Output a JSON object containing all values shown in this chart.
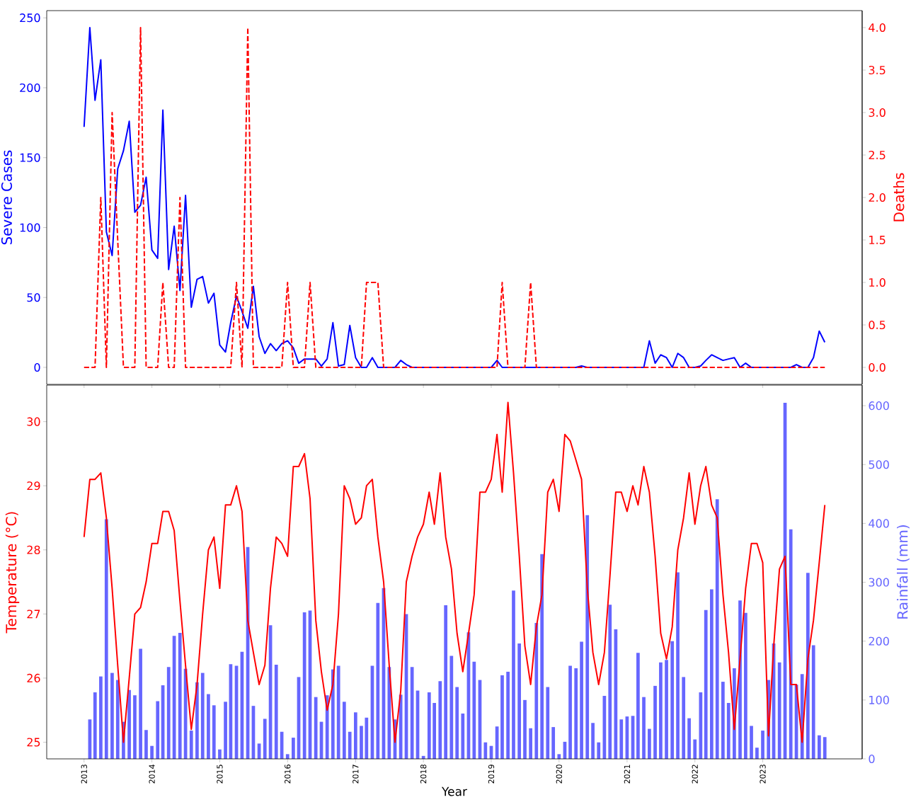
{
  "chart_data": [
    {
      "type": "line",
      "ylabel": "Severe Cases",
      "y2label": "Deaths",
      "x": [
        "2013-01",
        "2013-02",
        "2013-03",
        "2013-04",
        "2013-05",
        "2013-06",
        "2013-07",
        "2013-08",
        "2013-09",
        "2013-10",
        "2013-11",
        "2013-12",
        "2014-01",
        "2014-02",
        "2014-03",
        "2014-04",
        "2014-05",
        "2014-06",
        "2014-07",
        "2014-08",
        "2014-09",
        "2014-10",
        "2014-11",
        "2014-12",
        "2015-01",
        "2015-02",
        "2015-03",
        "2015-04",
        "2015-05",
        "2015-06",
        "2015-07",
        "2015-08",
        "2015-09",
        "2015-10",
        "2015-11",
        "2015-12",
        "2016-01",
        "2016-02",
        "2016-03",
        "2016-04",
        "2016-05",
        "2016-06",
        "2016-07",
        "2016-08",
        "2016-09",
        "2016-10",
        "2016-11",
        "2016-12",
        "2017-01",
        "2017-02",
        "2017-03",
        "2017-04",
        "2017-05",
        "2017-06",
        "2017-07",
        "2017-08",
        "2017-09",
        "2017-10",
        "2017-11",
        "2017-12",
        "2018-01",
        "2018-02",
        "2018-03",
        "2018-04",
        "2018-05",
        "2018-06",
        "2018-07",
        "2018-08",
        "2018-09",
        "2018-10",
        "2018-11",
        "2018-12",
        "2019-01",
        "2019-02",
        "2019-03",
        "2019-04",
        "2019-05",
        "2019-06",
        "2019-07",
        "2019-08",
        "2019-09",
        "2019-10",
        "2019-11",
        "2019-12",
        "2020-01",
        "2020-02",
        "2020-03",
        "2020-04",
        "2020-05",
        "2020-06",
        "2020-07",
        "2020-08",
        "2020-09",
        "2020-10",
        "2020-11",
        "2020-12",
        "2021-01",
        "2021-02",
        "2021-03",
        "2021-04",
        "2021-05",
        "2021-06",
        "2021-07",
        "2021-08",
        "2021-09",
        "2021-10",
        "2021-11",
        "2021-12",
        "2022-01",
        "2022-02",
        "2022-03",
        "2022-04",
        "2022-05",
        "2022-06",
        "2022-07",
        "2022-08",
        "2022-09",
        "2022-10",
        "2022-11",
        "2022-12",
        "2023-01",
        "2023-02",
        "2023-03",
        "2023-04",
        "2023-05",
        "2023-06",
        "2023-07",
        "2023-08",
        "2023-09",
        "2023-10",
        "2023-11",
        "2023-12"
      ],
      "xlim": [
        "2012-06-14",
        "2024-06-19"
      ],
      "xticks": [
        "2013",
        "2014",
        "2015",
        "2016",
        "2017",
        "2018",
        "2019",
        "2020",
        "2021",
        "2022",
        "2023"
      ],
      "ylim": [
        -12.15,
        255.15
      ],
      "yticks": [
        0,
        50,
        100,
        150,
        200,
        250
      ],
      "y2lim": [
        -0.2,
        4.2
      ],
      "y2ticks": [
        {
          "value": 0,
          "label": "0.0"
        },
        {
          "value": 0.5,
          "label": "0.5"
        },
        {
          "value": 1,
          "label": "1.0"
        },
        {
          "value": 1.5,
          "label": "1.5"
        },
        {
          "value": 2,
          "label": "2.0"
        },
        {
          "value": 2.5,
          "label": "2.5"
        },
        {
          "value": 3,
          "label": "3.0"
        },
        {
          "value": 3.5,
          "label": "3.5"
        },
        {
          "value": 4,
          "label": "4.0"
        }
      ],
      "tick_labels": "y",
      "series": [
        {
          "color": "#0000ff",
          "line_style": "solid",
          "values": [
            172,
            243,
            191,
            220,
            97,
            80,
            142,
            155,
            176,
            111,
            116,
            136,
            84,
            78,
            184,
            70,
            101,
            55,
            123,
            43,
            63,
            65,
            46,
            53,
            16,
            11,
            32,
            51,
            40,
            28,
            58,
            22,
            10,
            17,
            12,
            17,
            19,
            14,
            3,
            6,
            6,
            6,
            1,
            6,
            32,
            1,
            2,
            30,
            7,
            0,
            0,
            7,
            0,
            0,
            0,
            0,
            5,
            2,
            0,
            0,
            0,
            0,
            0,
            0,
            0,
            0,
            0,
            0,
            0,
            0,
            0,
            0,
            0,
            5,
            0,
            0,
            0,
            0,
            0,
            0,
            0,
            0,
            0,
            0,
            0,
            0,
            0,
            0,
            1,
            0,
            0,
            0,
            0,
            0,
            0,
            0,
            0,
            0,
            0,
            0,
            19,
            3,
            9,
            7,
            0,
            10,
            7,
            0,
            0,
            1,
            5,
            9,
            7,
            5,
            6,
            7,
            0,
            3,
            0,
            0,
            0,
            0,
            0,
            0,
            0,
            0,
            2,
            0,
            0,
            7,
            26,
            18
          ]
        },
        {
          "color": "#ff0000",
          "axis": "y2",
          "line_style": "dashed",
          "values": [
            0,
            0,
            0,
            2,
            0,
            3,
            1.5,
            0,
            0,
            0,
            4,
            0,
            0,
            0,
            1,
            0,
            0,
            2,
            0,
            0,
            0,
            0,
            0,
            0,
            0,
            0,
            0,
            1,
            0,
            4,
            0,
            0,
            0,
            0,
            0,
            0,
            1,
            0,
            0,
            0,
            1,
            0,
            0,
            0,
            0,
            0,
            0,
            0,
            0,
            0,
            1,
            1,
            1,
            0,
            0,
            0,
            0,
            0,
            0,
            0,
            0,
            0,
            0,
            0,
            0,
            0,
            0,
            0,
            0,
            0,
            0,
            0,
            0,
            0,
            1,
            0,
            0,
            0,
            0,
            1,
            0,
            0,
            0,
            0,
            0,
            0,
            0,
            0,
            0,
            0,
            0,
            0,
            0,
            0,
            0,
            0,
            0,
            0,
            0,
            0,
            0,
            0,
            0,
            0,
            0,
            0,
            0,
            0,
            0,
            0,
            0,
            0,
            0,
            0,
            0,
            0,
            0,
            0,
            0,
            0,
            0,
            0,
            0,
            0,
            0,
            0,
            0,
            0,
            0,
            0,
            0,
            0
          ]
        }
      ]
    },
    {
      "type": "line",
      "xlabel": "Year",
      "ylabel": "Temperature (°C)",
      "y2label": "Rainfall (mm)",
      "x": [
        "2013-01",
        "2013-02",
        "2013-03",
        "2013-04",
        "2013-05",
        "2013-06",
        "2013-07",
        "2013-08",
        "2013-09",
        "2013-10",
        "2013-11",
        "2013-12",
        "2014-01",
        "2014-02",
        "2014-03",
        "2014-04",
        "2014-05",
        "2014-06",
        "2014-07",
        "2014-08",
        "2014-09",
        "2014-10",
        "2014-11",
        "2014-12",
        "2015-01",
        "2015-02",
        "2015-03",
        "2015-04",
        "2015-05",
        "2015-06",
        "2015-07",
        "2015-08",
        "2015-09",
        "2015-10",
        "2015-11",
        "2015-12",
        "2016-01",
        "2016-02",
        "2016-03",
        "2016-04",
        "2016-05",
        "2016-06",
        "2016-07",
        "2016-08",
        "2016-09",
        "2016-10",
        "2016-11",
        "2016-12",
        "2017-01",
        "2017-02",
        "2017-03",
        "2017-04",
        "2017-05",
        "2017-06",
        "2017-07",
        "2017-08",
        "2017-09",
        "2017-10",
        "2017-11",
        "2017-12",
        "2018-01",
        "2018-02",
        "2018-03",
        "2018-04",
        "2018-05",
        "2018-06",
        "2018-07",
        "2018-08",
        "2018-09",
        "2018-10",
        "2018-11",
        "2018-12",
        "2019-01",
        "2019-02",
        "2019-03",
        "2019-04",
        "2019-05",
        "2019-06",
        "2019-07",
        "2019-08",
        "2019-09",
        "2019-10",
        "2019-11",
        "2019-12",
        "2020-01",
        "2020-02",
        "2020-03",
        "2020-04",
        "2020-05",
        "2020-06",
        "2020-07",
        "2020-08",
        "2020-09",
        "2020-10",
        "2020-11",
        "2020-12",
        "2021-01",
        "2021-02",
        "2021-03",
        "2021-04",
        "2021-05",
        "2021-06",
        "2021-07",
        "2021-08",
        "2021-09",
        "2021-10",
        "2021-11",
        "2021-12",
        "2022-01",
        "2022-02",
        "2022-03",
        "2022-04",
        "2022-05",
        "2022-06",
        "2022-07",
        "2022-08",
        "2022-09",
        "2022-10",
        "2022-11",
        "2022-12",
        "2023-01",
        "2023-02",
        "2023-03",
        "2023-04",
        "2023-05",
        "2023-06",
        "2023-07",
        "2023-08",
        "2023-09",
        "2023-10",
        "2023-11",
        "2023-12"
      ],
      "xlim": [
        "2012-06-14",
        "2024-06-19"
      ],
      "xticks": [
        "2013",
        "2014",
        "2015",
        "2016",
        "2017",
        "2018",
        "2019",
        "2020",
        "2021",
        "2022",
        "2023"
      ],
      "ylim": [
        24.74,
        30.57
      ],
      "yticks": [
        25,
        26,
        27,
        28,
        29,
        30
      ],
      "y2lim": [
        0,
        635
      ],
      "y2ticks": [
        0,
        100,
        200,
        300,
        400,
        500,
        600
      ],
      "series": [
        {
          "type": "bar",
          "color": "#6666ff",
          "axis": "y2",
          "values": [
            null,
            67,
            113,
            140,
            407,
            146,
            134,
            63,
            117,
            108,
            187,
            49,
            22,
            98,
            125,
            156,
            209,
            214,
            153,
            48,
            130,
            146,
            110,
            91,
            16,
            97,
            161,
            158,
            182,
            360,
            90,
            26,
            68,
            227,
            160,
            46,
            8,
            36,
            139,
            249,
            252,
            105,
            63,
            108,
            152,
            158,
            97,
            46,
            79,
            56,
            70,
            158,
            265,
            290,
            156,
            67,
            109,
            246,
            156,
            116,
            5,
            113,
            95,
            132,
            261,
            175,
            122,
            77,
            215,
            165,
            134,
            28,
            22,
            55,
            142,
            148,
            286,
            196,
            100,
            52,
            231,
            348,
            122,
            54,
            8,
            29,
            158,
            154,
            199,
            414,
            61,
            28,
            107,
            262,
            220,
            67,
            72,
            73,
            180,
            105,
            51,
            124,
            164,
            168,
            200,
            317,
            139,
            69,
            33,
            113,
            253,
            288,
            441,
            131,
            95,
            154,
            269,
            248,
            56,
            19,
            48,
            134,
            196,
            164,
            605,
            390,
            126,
            144,
            316,
            193,
            40,
            37
          ]
        },
        {
          "type": "line",
          "color": "#ff0000",
          "line_style": "solid",
          "values": [
            28.2,
            29.1,
            29.1,
            29.2,
            28.5,
            27.4,
            26.2,
            25.0,
            26.0,
            27.0,
            27.1,
            27.5,
            28.1,
            28.1,
            28.6,
            28.6,
            28.3,
            27.2,
            26.2,
            25.2,
            25.9,
            27.0,
            28.0,
            28.2,
            27.4,
            28.7,
            28.7,
            29.0,
            28.6,
            26.9,
            26.4,
            25.9,
            26.2,
            27.4,
            28.2,
            28.1,
            27.9,
            29.3,
            29.3,
            29.5,
            28.8,
            26.9,
            26.1,
            25.5,
            25.9,
            27.0,
            29.0,
            28.8,
            28.4,
            28.5,
            29.0,
            29.1,
            28.2,
            27.5,
            26.2,
            25.0,
            25.8,
            27.5,
            27.9,
            28.2,
            28.4,
            28.9,
            28.4,
            29.2,
            28.2,
            27.7,
            26.7,
            26.1,
            26.7,
            27.3,
            28.9,
            28.9,
            29.1,
            29.8,
            28.9,
            30.3,
            29.2,
            27.9,
            26.5,
            25.9,
            26.8,
            27.3,
            28.9,
            29.1,
            28.6,
            29.8,
            29.7,
            29.4,
            29.1,
            27.4,
            26.4,
            25.9,
            26.4,
            27.6,
            28.9,
            28.9,
            28.6,
            29.0,
            28.7,
            29.3,
            28.9,
            27.9,
            26.7,
            26.3,
            26.8,
            28.0,
            28.5,
            29.2,
            28.4,
            29.0,
            29.3,
            28.7,
            28.5,
            27.3,
            26.4,
            25.2,
            26.3,
            27.4,
            28.1,
            28.1,
            27.8,
            25.1,
            26.5,
            27.7,
            27.9,
            25.9,
            25.9,
            25.0,
            26.3,
            26.9,
            27.8,
            28.7
          ]
        }
      ]
    }
  ]
}
